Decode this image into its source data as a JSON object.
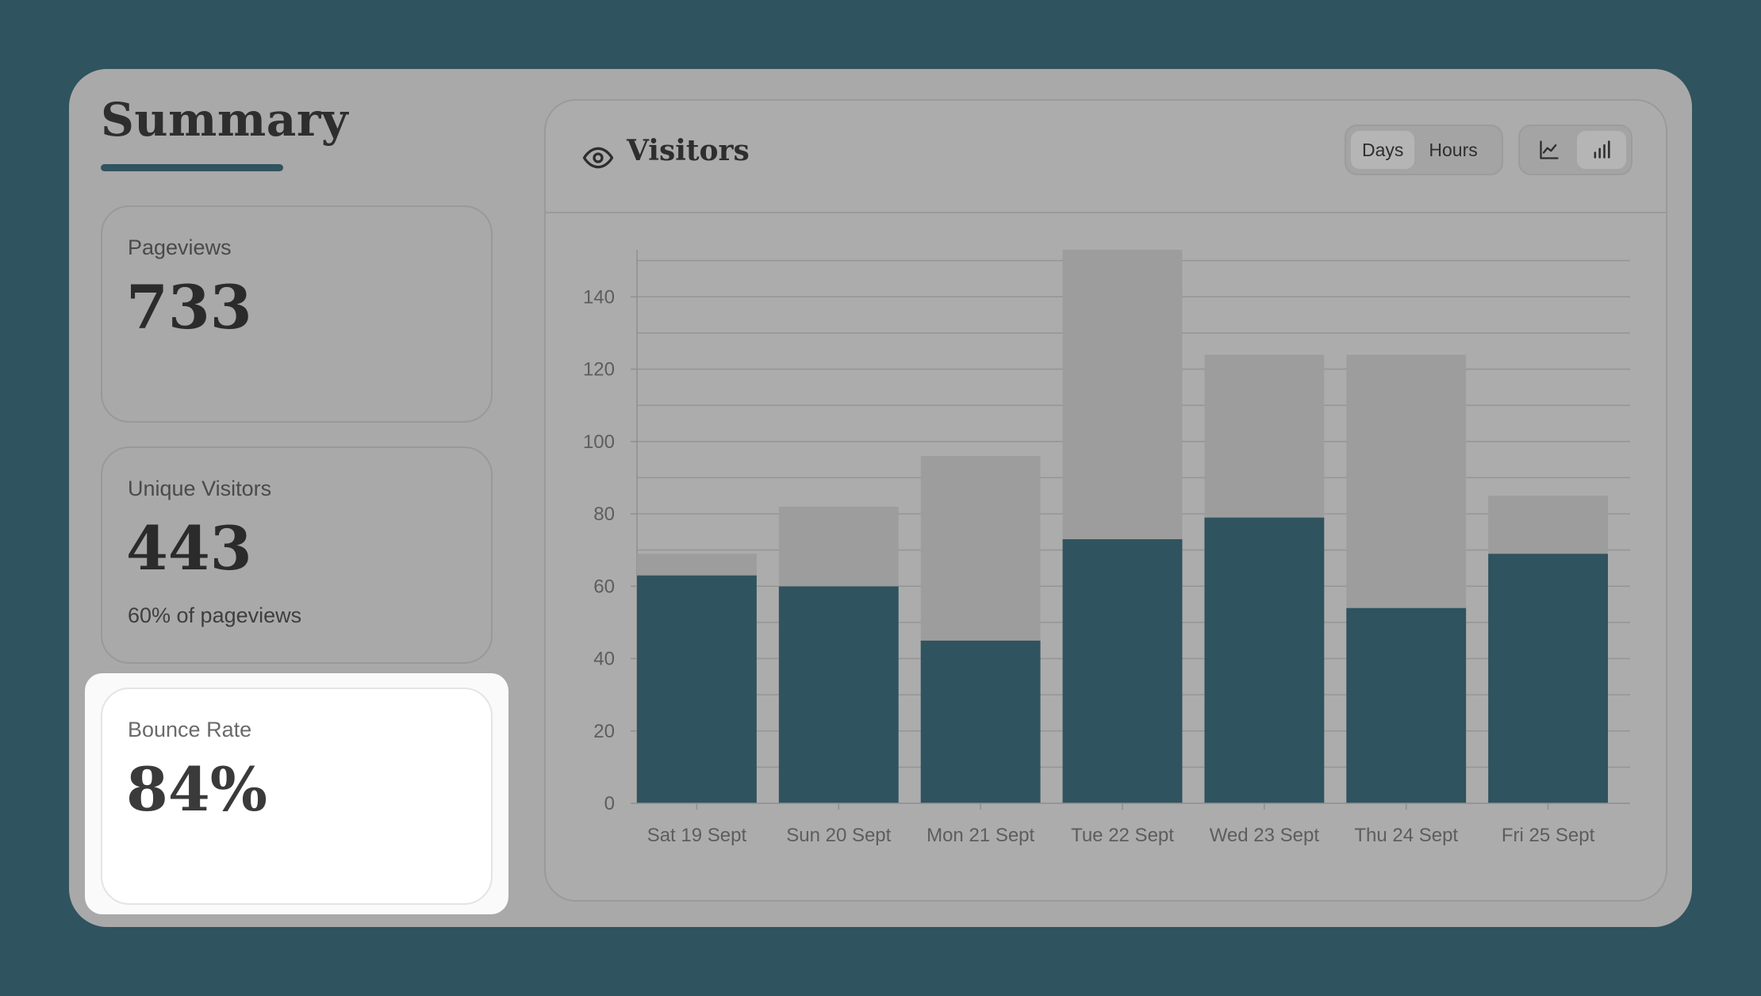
{
  "summary": {
    "title": "Summary",
    "cards": [
      {
        "label": "Pageviews",
        "value": "733",
        "sub": ""
      },
      {
        "label": "Unique Visitors",
        "value": "443",
        "sub": "60% of pageviews"
      },
      {
        "label": "Bounce Rate",
        "value": "84%",
        "sub": ""
      }
    ]
  },
  "visitors": {
    "title": "Visitors",
    "icon": "eye-icon",
    "range_toggle": [
      {
        "label": "Days",
        "active": true
      },
      {
        "label": "Hours",
        "active": false
      }
    ],
    "type_toggle": [
      {
        "icon": "line-chart-icon",
        "active": false
      },
      {
        "icon": "bar-chart-icon",
        "active": true
      }
    ]
  },
  "colors": {
    "background": "#2f535f",
    "panel": "#a9a9a9",
    "accent": "#2f535f",
    "bar_total": "#9d9d9d",
    "highlight_card": "#ffffff"
  },
  "chart_data": {
    "type": "bar",
    "stacked": true,
    "categories": [
      "Sat 19 Sept",
      "Sun 20 Sept",
      "Mon 21 Sept",
      "Tue 22 Sept",
      "Wed 23 Sept",
      "Thu 24 Sept",
      "Fri 25 Sept"
    ],
    "series": [
      {
        "values": [
          63,
          60,
          45,
          73,
          79,
          54,
          69
        ],
        "color": "#2f535f"
      },
      {
        "values": [
          6,
          22,
          51,
          80,
          45,
          70,
          16
        ],
        "color": "#9d9d9d"
      }
    ],
    "totals": [
      69,
      82,
      96,
      153,
      124,
      124,
      85
    ],
    "ylim": [
      0,
      150
    ],
    "yticks": [
      0,
      20,
      40,
      60,
      80,
      100,
      120,
      140
    ],
    "grid": true,
    "title": "",
    "xlabel": "",
    "ylabel": ""
  }
}
